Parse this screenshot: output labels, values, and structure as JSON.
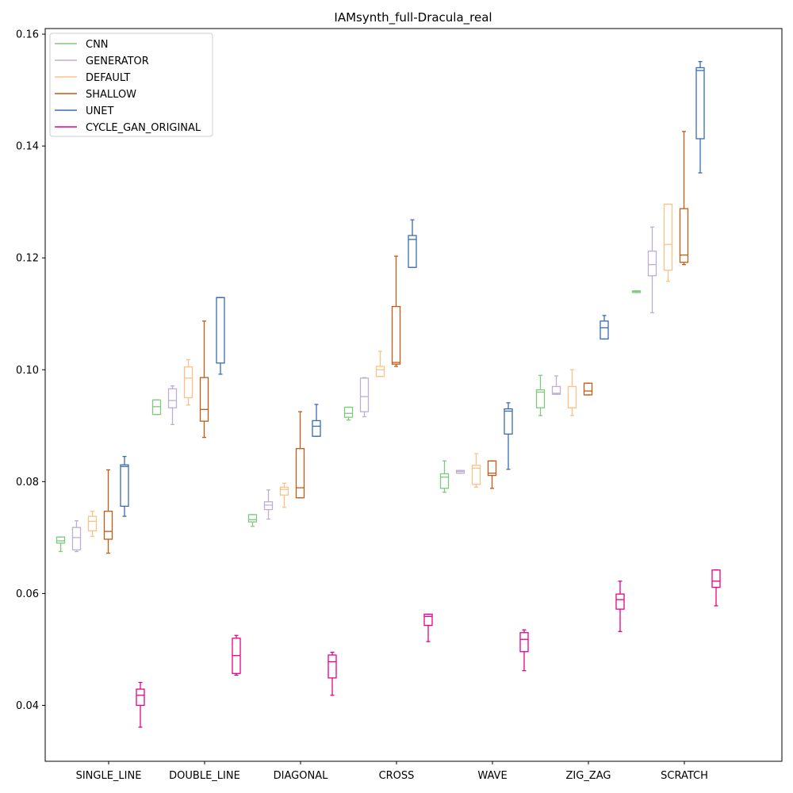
{
  "chart_data": {
    "type": "box",
    "title": "IAMsynth_full-Dracula_real",
    "xlabel": "",
    "ylabel": "",
    "ylim": [
      0.03,
      0.161
    ],
    "yticks": [
      0.04,
      0.06,
      0.08,
      0.1,
      0.12,
      0.14,
      0.16
    ],
    "ytick_labels": [
      "0.04",
      "0.06",
      "0.08",
      "0.10",
      "0.12",
      "0.14",
      "0.16"
    ],
    "categories": [
      "SINGLE_LINE",
      "DOUBLE_LINE",
      "DIAGONAL",
      "CROSS",
      "WAVE",
      "ZIG_ZAG",
      "SCRATCH"
    ],
    "legend_position": "top-left",
    "grid": false,
    "series": [
      {
        "name": "CNN",
        "color": "#7fc97f",
        "boxes": [
          {
            "whislo": 0.0675,
            "q1": 0.069,
            "med": 0.0694,
            "q3": 0.0701,
            "whishi": 0.0701
          },
          {
            "whislo": 0.092,
            "q1": 0.092,
            "med": 0.0934,
            "q3": 0.0946,
            "whishi": 0.0946
          },
          {
            "whislo": 0.072,
            "q1": 0.0728,
            "med": 0.0732,
            "q3": 0.0741,
            "whishi": 0.0741
          },
          {
            "whislo": 0.091,
            "q1": 0.0915,
            "med": 0.0922,
            "q3": 0.0933,
            "whishi": 0.0933
          },
          {
            "whislo": 0.0781,
            "q1": 0.0788,
            "med": 0.0808,
            "q3": 0.0814,
            "whishi": 0.0837
          },
          {
            "whislo": 0.0918,
            "q1": 0.0932,
            "med": 0.096,
            "q3": 0.0964,
            "whishi": 0.099
          },
          {
            "whislo": 0.1138,
            "q1": 0.1138,
            "med": 0.114,
            "q3": 0.1141,
            "whishi": 0.1141
          }
        ]
      },
      {
        "name": "GENERATOR",
        "color": "#beaed4",
        "boxes": [
          {
            "whislo": 0.0675,
            "q1": 0.0678,
            "med": 0.07,
            "q3": 0.0718,
            "whishi": 0.073
          },
          {
            "whislo": 0.0902,
            "q1": 0.0932,
            "med": 0.0945,
            "q3": 0.0966,
            "whishi": 0.0971
          },
          {
            "whislo": 0.0733,
            "q1": 0.075,
            "med": 0.0758,
            "q3": 0.0764,
            "whishi": 0.0785
          },
          {
            "whislo": 0.0916,
            "q1": 0.0925,
            "med": 0.0952,
            "q3": 0.0985,
            "whishi": 0.0986
          },
          {
            "whislo": 0.0815,
            "q1": 0.0815,
            "med": 0.0818,
            "q3": 0.082,
            "whishi": 0.082
          },
          {
            "whislo": 0.0956,
            "q1": 0.0956,
            "med": 0.0958,
            "q3": 0.097,
            "whishi": 0.0989
          },
          {
            "whislo": 0.1102,
            "q1": 0.1168,
            "med": 0.1188,
            "q3": 0.1212,
            "whishi": 0.1255
          }
        ]
      },
      {
        "name": "DEFAULT",
        "color": "#fdc086",
        "boxes": [
          {
            "whislo": 0.0702,
            "q1": 0.0712,
            "med": 0.0729,
            "q3": 0.0738,
            "whishi": 0.0747
          },
          {
            "whislo": 0.0937,
            "q1": 0.095,
            "med": 0.0985,
            "q3": 0.1005,
            "whishi": 0.1018
          },
          {
            "whislo": 0.0754,
            "q1": 0.0776,
            "med": 0.0786,
            "q3": 0.079,
            "whishi": 0.0797
          },
          {
            "whislo": 0.0988,
            "q1": 0.0988,
            "med": 0.1,
            "q3": 0.1006,
            "whishi": 0.1033
          },
          {
            "whislo": 0.079,
            "q1": 0.0795,
            "med": 0.0824,
            "q3": 0.0829,
            "whishi": 0.085
          },
          {
            "whislo": 0.0918,
            "q1": 0.0932,
            "med": 0.0932,
            "q3": 0.097,
            "whishi": 0.1
          },
          {
            "whislo": 0.1158,
            "q1": 0.1178,
            "med": 0.1224,
            "q3": 0.1296,
            "whishi": 0.1296
          }
        ]
      },
      {
        "name": "SHALLOW",
        "color": "#bf5b17",
        "boxes": [
          {
            "whislo": 0.0672,
            "q1": 0.0697,
            "med": 0.0711,
            "q3": 0.0747,
            "whishi": 0.0821
          },
          {
            "whislo": 0.0879,
            "q1": 0.0908,
            "med": 0.0929,
            "q3": 0.0986,
            "whishi": 0.1087
          },
          {
            "whislo": 0.0771,
            "q1": 0.0771,
            "med": 0.0789,
            "q3": 0.0859,
            "whishi": 0.0925
          },
          {
            "whislo": 0.1006,
            "q1": 0.101,
            "med": 0.1013,
            "q3": 0.1113,
            "whishi": 0.1203
          },
          {
            "whislo": 0.0788,
            "q1": 0.0811,
            "med": 0.0815,
            "q3": 0.0837,
            "whishi": 0.0837
          },
          {
            "whislo": 0.0955,
            "q1": 0.0955,
            "med": 0.0962,
            "q3": 0.0976,
            "whishi": 0.0976
          },
          {
            "whislo": 0.1188,
            "q1": 0.1192,
            "med": 0.1205,
            "q3": 0.1288,
            "whishi": 0.1426
          }
        ]
      },
      {
        "name": "UNET",
        "color": "#386cb0",
        "boxes": [
          {
            "whislo": 0.0738,
            "q1": 0.0756,
            "med": 0.0827,
            "q3": 0.083,
            "whishi": 0.0845
          },
          {
            "whislo": 0.0992,
            "q1": 0.1012,
            "med": 0.1129,
            "q3": 0.1129,
            "whishi": 0.1129
          },
          {
            "whislo": 0.0881,
            "q1": 0.0881,
            "med": 0.0899,
            "q3": 0.0909,
            "whishi": 0.0938
          },
          {
            "whislo": 0.1183,
            "q1": 0.1183,
            "med": 0.1233,
            "q3": 0.124,
            "whishi": 0.1268
          },
          {
            "whislo": 0.0822,
            "q1": 0.0885,
            "med": 0.0926,
            "q3": 0.093,
            "whishi": 0.0941
          },
          {
            "whislo": 0.1055,
            "q1": 0.1055,
            "med": 0.1075,
            "q3": 0.1087,
            "whishi": 0.1097
          },
          {
            "whislo": 0.1352,
            "q1": 0.1413,
            "med": 0.1535,
            "q3": 0.154,
            "whishi": 0.1551
          }
        ]
      },
      {
        "name": "CYCLE_GAN_ORIGINAL",
        "color": "#e7008a",
        "boxes": [
          {
            "whislo": 0.0361,
            "q1": 0.04,
            "med": 0.0418,
            "q3": 0.0429,
            "whishi": 0.0441
          },
          {
            "whislo": 0.0454,
            "q1": 0.0457,
            "med": 0.0489,
            "q3": 0.052,
            "whishi": 0.0525
          },
          {
            "whislo": 0.0418,
            "q1": 0.0449,
            "med": 0.0478,
            "q3": 0.049,
            "whishi": 0.0495
          },
          {
            "whislo": 0.0514,
            "q1": 0.0543,
            "med": 0.0559,
            "q3": 0.0563,
            "whishi": 0.0563
          },
          {
            "whislo": 0.0462,
            "q1": 0.0496,
            "med": 0.0518,
            "q3": 0.053,
            "whishi": 0.0535
          },
          {
            "whislo": 0.0532,
            "q1": 0.0572,
            "med": 0.0589,
            "q3": 0.0599,
            "whishi": 0.0622
          },
          {
            "whislo": 0.0578,
            "q1": 0.0611,
            "med": 0.0622,
            "q3": 0.0642,
            "whishi": 0.0642
          }
        ]
      }
    ]
  }
}
